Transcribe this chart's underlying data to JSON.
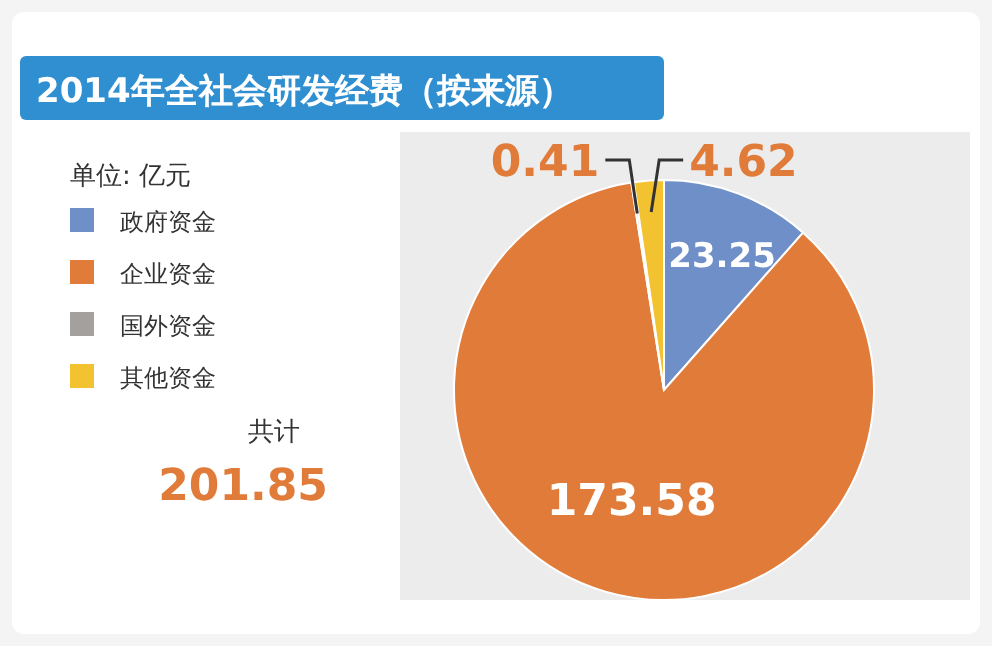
{
  "chart_data": {
    "type": "pie",
    "title": "2014年全社会研发经费（按来源）",
    "categories": [
      "政府资金",
      "企业资金",
      "国外资金",
      "其他资金"
    ],
    "values": [
      23.25,
      173.58,
      0.41,
      4.62
    ],
    "colors": [
      "#6f8fc8",
      "#e07b39",
      "#a3a09e",
      "#f2c230"
    ],
    "data_labels": true,
    "legend": "left",
    "annotations": [
      "单位: 亿元",
      "共计",
      "201.85"
    ]
  }
}
